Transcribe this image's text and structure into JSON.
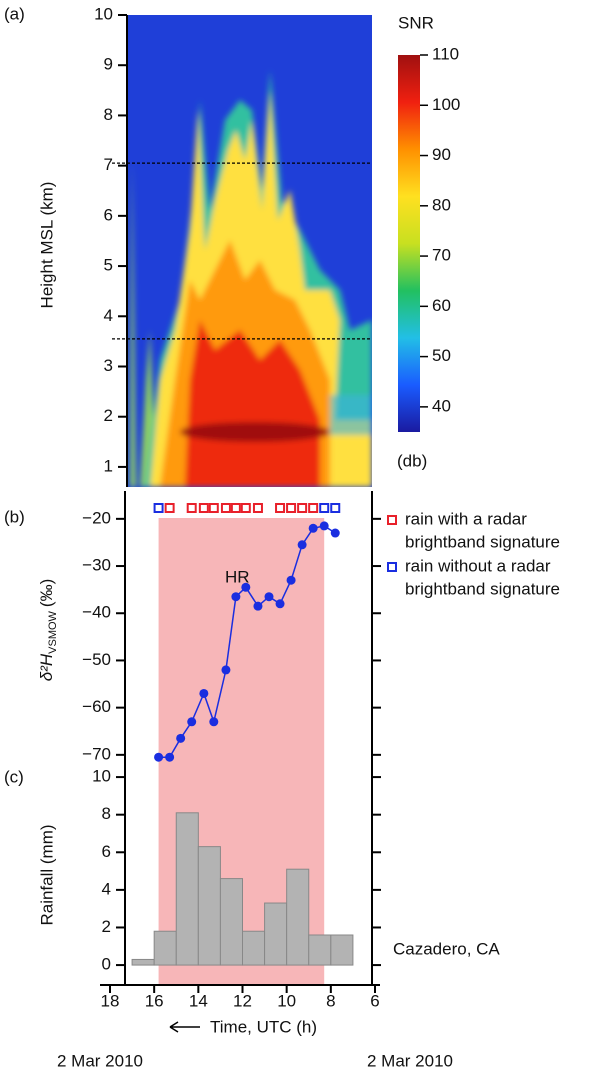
{
  "chart_data": [
    {
      "type": "heatmap",
      "panel_label": "(a)",
      "ylabel": "Height MSL (km)",
      "ylim": [
        0.6,
        10
      ],
      "yticks": [
        1,
        2,
        3,
        4,
        5,
        6,
        7,
        8,
        9,
        10
      ],
      "dashed_lines": [
        7.05,
        3.55
      ],
      "colorbar": {
        "title": "SNR",
        "unit": "(db)",
        "lim": [
          35,
          110
        ],
        "ticks": [
          40,
          50,
          60,
          70,
          80,
          90,
          100,
          110
        ],
        "colors": [
          "#1a1aa0",
          "#1a5cff",
          "#22bfe6",
          "#22c060",
          "#c8e020",
          "#ffe020",
          "#ff9000",
          "#f02010",
          "#a01010"
        ]
      }
    },
    {
      "type": "line",
      "panel_label": "(b)",
      "ylabel": "δ²H",
      "ylabel_sub": "VSMOW",
      "ylabel_unit": "(‰)",
      "ylim": [
        -73,
        -14.1
      ],
      "yticks": [
        {
          "value": -20,
          "label": "−20"
        },
        {
          "value": -30,
          "label": "−30"
        },
        {
          "value": -40,
          "label": "−40"
        },
        {
          "value": -50,
          "label": "−50"
        },
        {
          "value": -60,
          "label": "−60"
        },
        {
          "value": -70,
          "label": "−70"
        }
      ],
      "x": [
        15.8,
        15.3,
        14.8,
        14.3,
        13.75,
        13.3,
        12.75,
        12.3,
        11.85,
        11.3,
        10.8,
        10.3,
        9.8,
        9.3,
        8.8,
        8.3,
        7.8
      ],
      "series": [
        {
          "color": "#1a2ee0",
          "values": [
            -70.5,
            -70.5,
            -66.5,
            -63,
            -57,
            -63,
            -52,
            -36.5,
            -34.5,
            -38.5,
            -36.5,
            -38,
            -33,
            -25.5,
            -22,
            -21.5,
            -23
          ]
        }
      ],
      "signature": [
        "blue",
        "red",
        null,
        "red",
        "red",
        "red",
        "red",
        "red",
        "red",
        "red",
        null,
        "red",
        "red",
        "red",
        "red",
        "blue",
        "blue"
      ],
      "legend": [
        {
          "key": "red",
          "color": "#e8202a",
          "lines": [
            "rain with a radar",
            "brightband signature"
          ]
        },
        {
          "key": "blue",
          "color": "#1a2ee0",
          "lines": [
            "rain without a radar",
            "brightband signature"
          ]
        }
      ],
      "annotation": "HR",
      "shaded_region": [
        15.8,
        8.3
      ],
      "shade_color": "#f7b6b8"
    },
    {
      "type": "histogram",
      "panel_label": "(c)",
      "ylabel": "Rainfall (mm)",
      "ylim": [
        -1.06,
        10.43
      ],
      "yticks": [
        0,
        2,
        4,
        6,
        8,
        10
      ],
      "bins": [
        17,
        16,
        15,
        14,
        13,
        12,
        11,
        10,
        9,
        8,
        7
      ],
      "values": [
        0.3,
        1.8,
        8.1,
        6.3,
        4.6,
        1.8,
        3.3,
        5.1,
        1.6,
        1.6
      ],
      "color": "#b3b3b3",
      "annotation": "Cazadero, CA",
      "xlim": [
        18,
        6
      ],
      "xticks": [
        18,
        16,
        14,
        12,
        10,
        8,
        6
      ],
      "xlabel": "Time, UTC (h)",
      "date_left": "2 Mar 2010",
      "date_right": "2 Mar 2010"
    }
  ]
}
